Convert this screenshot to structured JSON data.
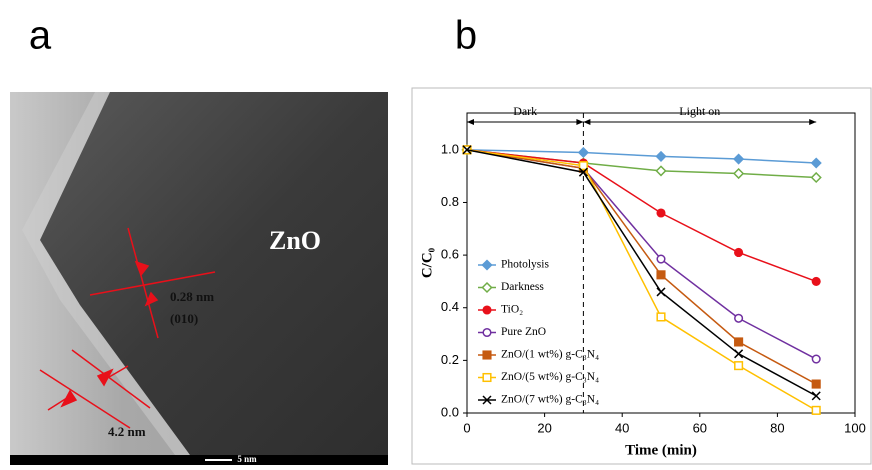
{
  "panel_labels": [
    "a",
    "b"
  ],
  "micrograph": {
    "label": "ZnO",
    "spacing": "0.28 nm",
    "plane": "(010)",
    "shell": "4.2 nm",
    "scale_bar": "5 nm"
  },
  "chart_data": {
    "type": "line",
    "xlabel": "Time (min)",
    "ylabel": "C/C₀",
    "annotations": [
      "Dark",
      "Light on"
    ],
    "divider_x": 30,
    "x": [
      0,
      30,
      50,
      70,
      90
    ],
    "xlim": [
      0,
      100
    ],
    "xticks": [
      0,
      20,
      40,
      60,
      80,
      100
    ],
    "ylim": [
      0,
      1.14
    ],
    "yticks": [
      {
        "value": 0,
        "label": "0.0"
      },
      0.2,
      0.4,
      0.6,
      0.8,
      {
        "value": 1,
        "label": "1.0"
      }
    ],
    "series": [
      {
        "name": "Photolysis",
        "color": "#5b9bd5",
        "marker": "diamond",
        "filled": true,
        "values": [
          1.0,
          0.99,
          0.975,
          0.965,
          0.95
        ]
      },
      {
        "name": "Darkness",
        "color": "#70ad47",
        "marker": "diamond",
        "filled": false,
        "values": [
          1.0,
          0.95,
          0.92,
          0.91,
          0.895
        ]
      },
      {
        "name": "TiO₂",
        "color": "#e8101a",
        "marker": "circle",
        "filled": true,
        "values": [
          1.0,
          0.95,
          0.76,
          0.61,
          0.5
        ]
      },
      {
        "name": "Pure ZnO",
        "color": "#7030a0",
        "marker": "circle",
        "filled": false,
        "values": [
          1.0,
          0.93,
          0.585,
          0.36,
          0.205
        ]
      },
      {
        "name": "ZnO/(1 wt%) g-C₃N₄",
        "color": "#c55a11",
        "marker": "square",
        "filled": true,
        "values": [
          1.0,
          0.93,
          0.525,
          0.27,
          0.11
        ]
      },
      {
        "name": "ZnO/(5 wt%) g-C₃N₄",
        "color": "#ffc000",
        "marker": "square",
        "filled": false,
        "values": [
          1.0,
          0.94,
          0.365,
          0.18,
          0.01
        ]
      },
      {
        "name": "ZnO/(7 wt%) g-C₃N₄",
        "color": "#000000",
        "marker": "x",
        "filled": true,
        "values": [
          1.0,
          0.915,
          0.46,
          0.225,
          0.065
        ]
      }
    ]
  }
}
